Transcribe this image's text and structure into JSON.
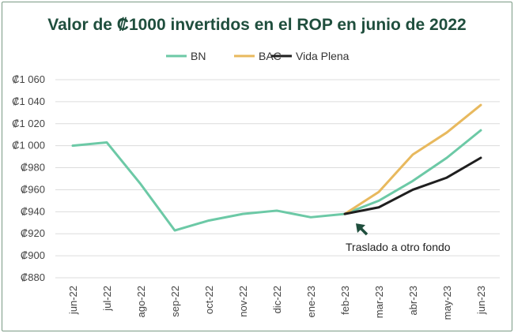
{
  "chart_data": {
    "type": "line",
    "title": "Valor de ₡1000 invertidos en el ROP en junio de 2022",
    "xlabel": "",
    "ylabel": "",
    "ylim": [
      880,
      1060
    ],
    "yticks": [
      880,
      900,
      920,
      940,
      960,
      980,
      1000,
      1020,
      1040,
      1060
    ],
    "ytick_labels": [
      "₡880",
      "₡900",
      "₡920",
      "₡940",
      "₡960",
      "₡980",
      "₡1 000",
      "₡1 020",
      "₡1 040",
      "₡1 060"
    ],
    "categories": [
      "jun-22",
      "jul-22",
      "ago-22",
      "sep-22",
      "oct-22",
      "nov-22",
      "dic-22",
      "ene-23",
      "feb-23",
      "mar-23",
      "abr-23",
      "may-23",
      "jun-23"
    ],
    "grid": true,
    "legend_position": "top-center",
    "series": [
      {
        "name": "BN",
        "color": "#6cc9a6",
        "values": [
          1000,
          1003,
          965,
          923,
          932,
          938,
          941,
          935,
          938,
          950,
          968,
          989,
          1014
        ]
      },
      {
        "name": "BAC",
        "color": "#e8b95e",
        "values": [
          null,
          null,
          null,
          null,
          null,
          null,
          null,
          null,
          938,
          958,
          992,
          1012,
          1037
        ]
      },
      {
        "name": "Vida Plena",
        "color": "#1f1f1f",
        "values": [
          null,
          null,
          null,
          null,
          null,
          null,
          null,
          null,
          938,
          944,
          960,
          971,
          989
        ]
      }
    ],
    "annotation": {
      "text": "Traslado a otro fondo",
      "category": "feb-23",
      "value": 938
    }
  }
}
